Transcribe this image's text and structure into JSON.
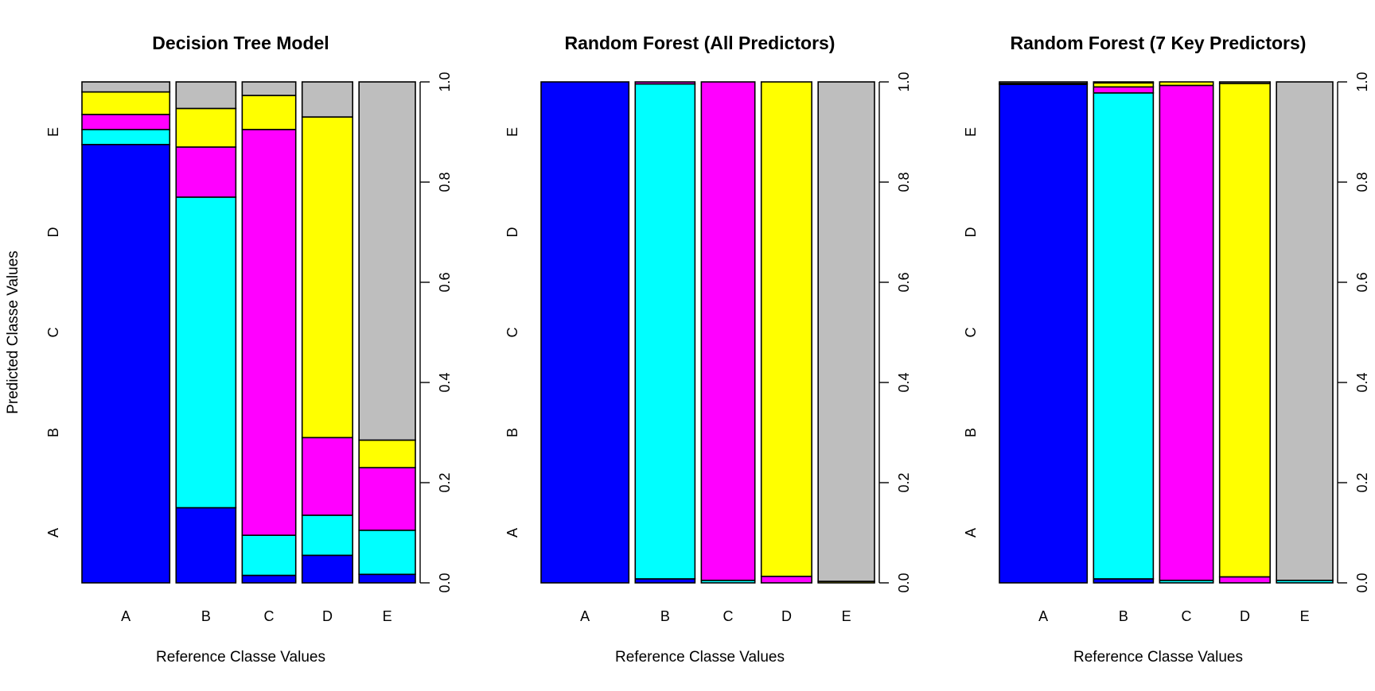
{
  "chart_data": {
    "type": "bar",
    "subtype": "mosaic",
    "xlabel": "Reference Classe Values",
    "ylabel": "Predicted Classe Values",
    "categories": [
      "A",
      "B",
      "C",
      "D",
      "E"
    ],
    "y_categories": [
      "A",
      "B",
      "C",
      "D",
      "E"
    ],
    "right_axis": {
      "ticks": [
        "0.0",
        "0.2",
        "0.4",
        "0.6",
        "0.8",
        "1.0"
      ],
      "ylim": [
        0,
        1
      ]
    },
    "colors": {
      "A": "#0000ff",
      "B": "#00ffff",
      "C": "#ff00ff",
      "D": "#ffff00",
      "E": "#bebebe"
    },
    "panels": [
      {
        "title": "Decision Tree Model",
        "column_widths": [
          0.285,
          0.194,
          0.174,
          0.164,
          0.183
        ],
        "proportions": {
          "A": [
            0.875,
            0.03,
            0.03,
            0.045,
            0.02
          ],
          "B": [
            0.15,
            0.62,
            0.1,
            0.077,
            0.053
          ],
          "C": [
            0.015,
            0.08,
            0.81,
            0.068,
            0.027
          ],
          "D": [
            0.055,
            0.08,
            0.155,
            0.64,
            0.07
          ],
          "E": [
            0.017,
            0.088,
            0.125,
            0.055,
            0.715
          ]
        }
      },
      {
        "title": "Random Forest (All Predictors)",
        "column_widths": [
          0.285,
          0.194,
          0.174,
          0.164,
          0.183
        ],
        "proportions": {
          "A": [
            1.0,
            0.0,
            0.0,
            0.0,
            0.0
          ],
          "B": [
            0.008,
            0.988,
            0.004,
            0.0,
            0.0
          ],
          "C": [
            0.0,
            0.005,
            0.995,
            0.0,
            0.0
          ],
          "D": [
            0.0,
            0.0,
            0.013,
            0.987,
            0.0
          ],
          "E": [
            0.0,
            0.0,
            0.0,
            0.003,
            0.997
          ]
        }
      },
      {
        "title": "Random Forest (7 Key Predictors)",
        "column_widths": [
          0.285,
          0.194,
          0.174,
          0.164,
          0.183
        ],
        "proportions": {
          "A": [
            0.995,
            0.002,
            0.0,
            0.0,
            0.003
          ],
          "B": [
            0.008,
            0.97,
            0.012,
            0.008,
            0.002
          ],
          "C": [
            0.0,
            0.005,
            0.988,
            0.007,
            0.0
          ],
          "D": [
            0.0,
            0.0,
            0.012,
            0.985,
            0.003
          ],
          "E": [
            0.0,
            0.005,
            0.0,
            0.0,
            0.995
          ]
        }
      }
    ]
  }
}
